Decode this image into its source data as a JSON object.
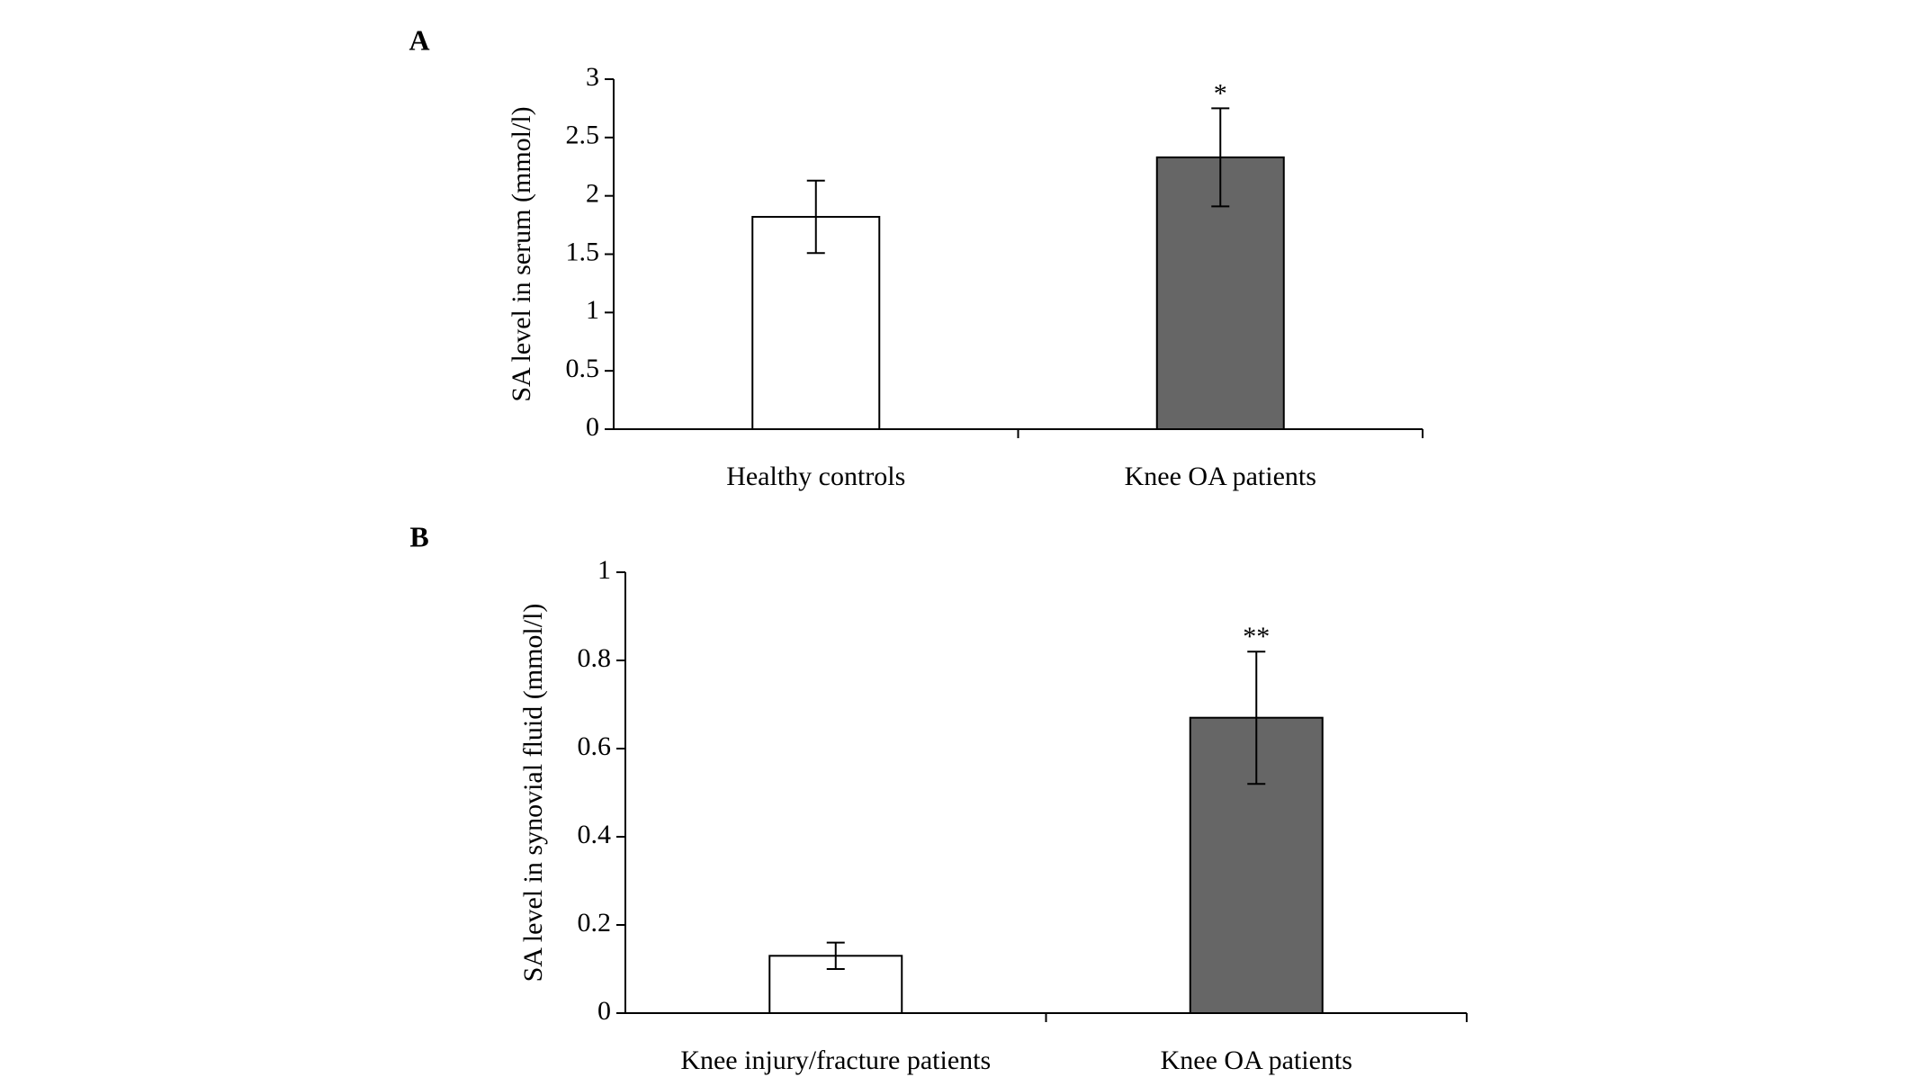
{
  "chart_data": [
    {
      "type": "bar",
      "panel_label": "A",
      "y_label": "SA level in serum (mmol/l)",
      "categories": [
        "Healthy controls",
        "Knee OA patients"
      ],
      "values": [
        1.82,
        2.33
      ],
      "errors": [
        0.31,
        0.42
      ],
      "colors": [
        "#ffffff",
        "#666666"
      ],
      "ylim": [
        0,
        3
      ],
      "yticks": [
        0,
        0.5,
        1,
        1.5,
        2,
        2.5,
        3
      ],
      "annotations": [
        {
          "category": "Knee OA patients",
          "text": "*"
        }
      ]
    },
    {
      "type": "bar",
      "panel_label": "B",
      "y_label": "SA level in synovial fluid (mmol/l)",
      "categories": [
        "Knee injury/fracture patients",
        "Knee OA patients"
      ],
      "values": [
        0.13,
        0.67
      ],
      "errors": [
        0.03,
        0.15
      ],
      "colors": [
        "#ffffff",
        "#666666"
      ],
      "ylim": [
        0,
        1
      ],
      "yticks": [
        0,
        0.2,
        0.4,
        0.6,
        0.8,
        1
      ],
      "annotations": [
        {
          "category": "Knee OA patients",
          "text": "**"
        }
      ]
    }
  ]
}
